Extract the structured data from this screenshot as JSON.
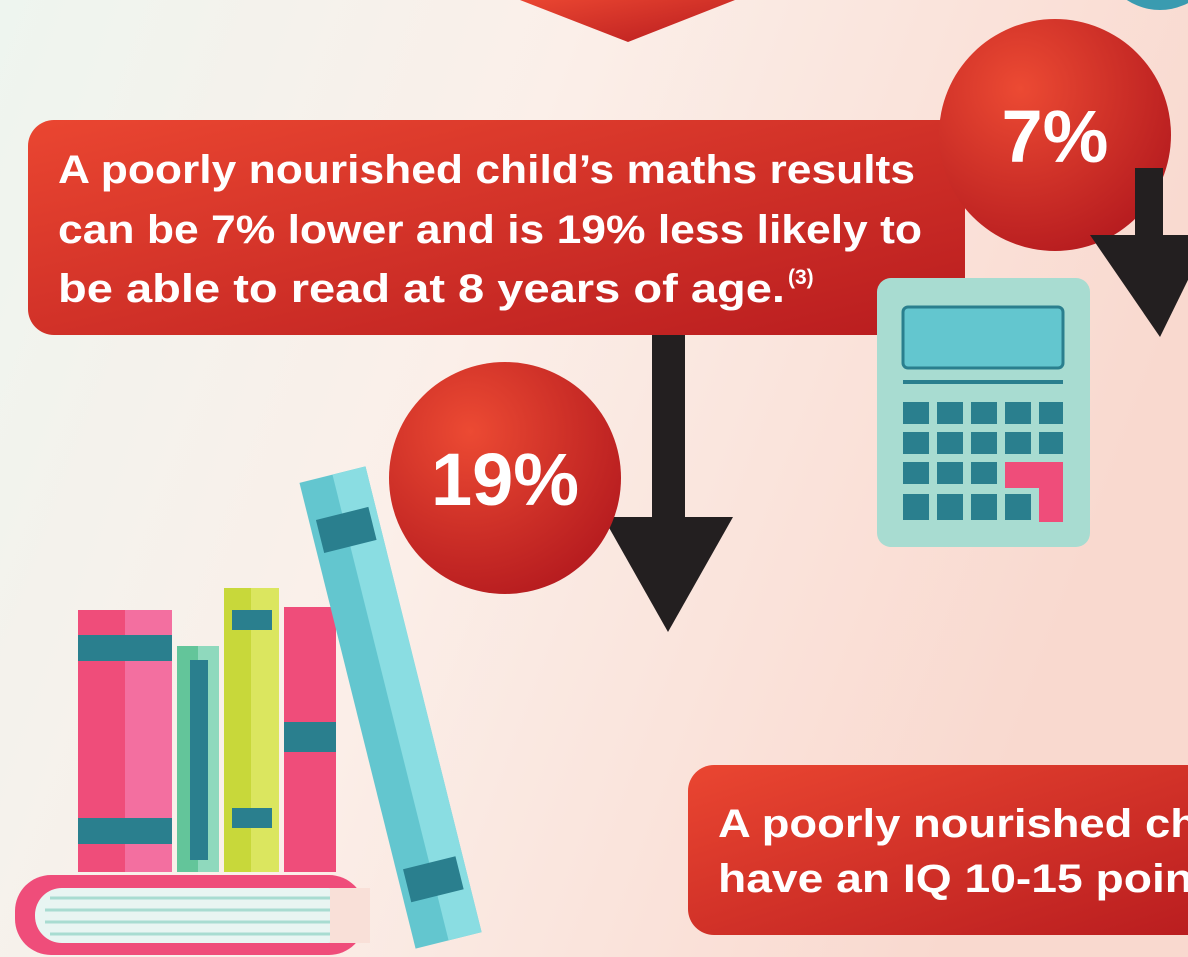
{
  "main_box": {
    "lines": [
      "A poorly nourished child’s maths results",
      "can be 7% lower and is 19% less likely to",
      "be able to read at 8 years of age."
    ],
    "reference": "(3)"
  },
  "badges": [
    "7%",
    "19%"
  ],
  "bottom_box": {
    "lines": [
      "A poorly nourished ch",
      "have an IQ 10-15 poin"
    ]
  }
}
